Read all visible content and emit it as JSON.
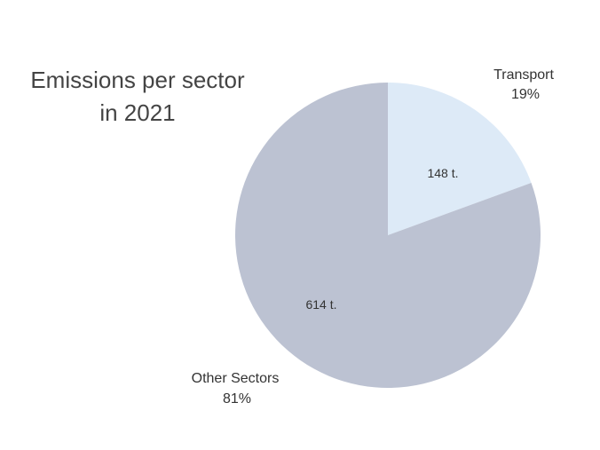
{
  "chart_data": {
    "type": "pie",
    "title_lines": [
      "Emissions per sector",
      "in 2021"
    ],
    "slices": [
      {
        "name": "Transport",
        "value": 148,
        "value_label": "148 t.",
        "percent_label": "19%",
        "color": "#ddeaf7"
      },
      {
        "name": "Other Sectors",
        "value": 614,
        "value_label": "614 t.",
        "percent_label": "81%",
        "color": "#bcc2d2"
      }
    ],
    "start_angle_deg": 0,
    "direction": "clockwise"
  }
}
